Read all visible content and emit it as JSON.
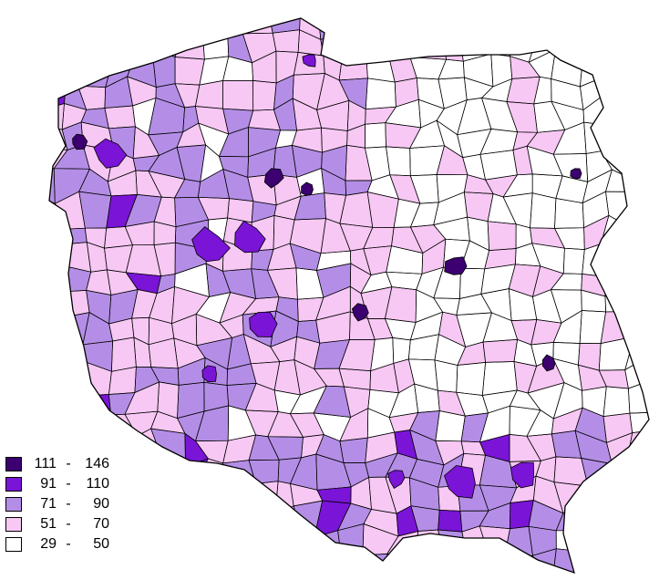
{
  "map": {
    "legend": [
      {
        "low": "111",
        "high": "146",
        "color": "#3c0070"
      },
      {
        "low": "91",
        "high": "110",
        "color": "#7a14d6"
      },
      {
        "low": "71",
        "high": "90",
        "color": "#b48ee6"
      },
      {
        "low": "51",
        "high": "70",
        "color": "#f7c8f4"
      },
      {
        "low": "29",
        "high": "50",
        "color": "#ffffff"
      }
    ],
    "border_color": "#000000"
  }
}
